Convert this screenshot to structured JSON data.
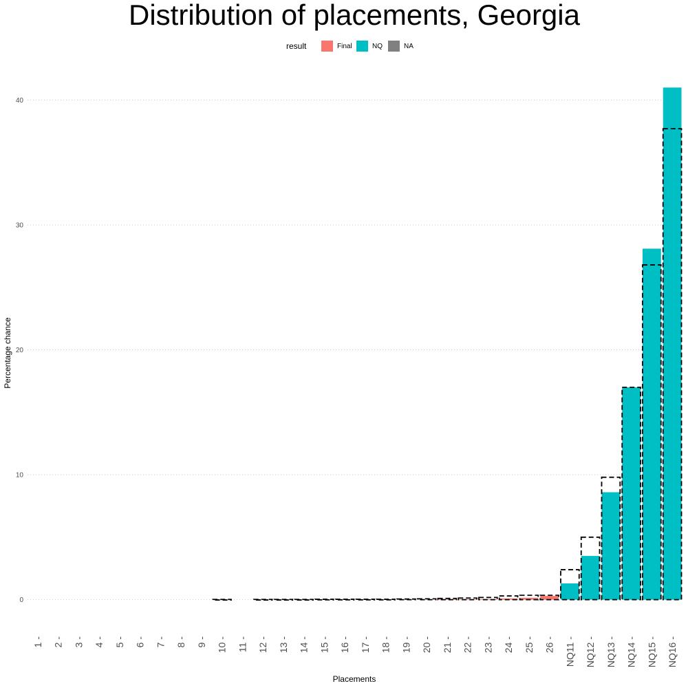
{
  "chart_data": {
    "type": "bar",
    "title": "Distribution of placements, Georgia",
    "xlabel": "Placements",
    "ylabel": "Percentage chance",
    "ylim": [
      -2.5,
      42.5
    ],
    "yticks": [
      0,
      10,
      20,
      30,
      40
    ],
    "grid": "horizontal-dotted",
    "legend": {
      "title": "result",
      "position": "top",
      "entries": [
        {
          "name": "Final",
          "color": "#F8766D"
        },
        {
          "name": "NQ",
          "color": "#00BFC4"
        },
        {
          "name": "NA",
          "color": "#808080"
        }
      ]
    },
    "categories": [
      "1",
      "2",
      "3",
      "4",
      "5",
      "6",
      "7",
      "8",
      "9",
      "10",
      "11",
      "12",
      "13",
      "14",
      "15",
      "16",
      "17",
      "18",
      "19",
      "20",
      "21",
      "22",
      "23",
      "24",
      "25",
      "26",
      "NQ11",
      "NQ12",
      "NQ13",
      "NQ14",
      "NQ15",
      "NQ16"
    ],
    "series": [
      {
        "name": "Final",
        "color": "#F8766D",
        "values": [
          0,
          0,
          0,
          0,
          0,
          0,
          0,
          0,
          0,
          0,
          0,
          0,
          0,
          0,
          0,
          0,
          0,
          0,
          0,
          0,
          0.02,
          0.03,
          0.05,
          0.1,
          0.15,
          0.3,
          0,
          0,
          0,
          0,
          0,
          0
        ]
      },
      {
        "name": "NQ",
        "color": "#00BFC4",
        "values": [
          0,
          0,
          0,
          0,
          0,
          0,
          0,
          0,
          0,
          0,
          0,
          0,
          0,
          0,
          0,
          0,
          0,
          0,
          0,
          0,
          0,
          0,
          0,
          0,
          0,
          0,
          1.3,
          3.5,
          8.6,
          17.0,
          28.1,
          41.0
        ]
      }
    ],
    "reference": {
      "style": "dashed-outline",
      "values": [
        0,
        0,
        0,
        0,
        0,
        0,
        0,
        0,
        0,
        0.02,
        0,
        0.02,
        0.02,
        0.02,
        0.03,
        0.03,
        0.03,
        0.03,
        0.05,
        0.07,
        0.1,
        0.13,
        0.18,
        0.3,
        0.35,
        0.35,
        2.4,
        5.0,
        9.8,
        17.0,
        26.8,
        37.7
      ]
    }
  }
}
